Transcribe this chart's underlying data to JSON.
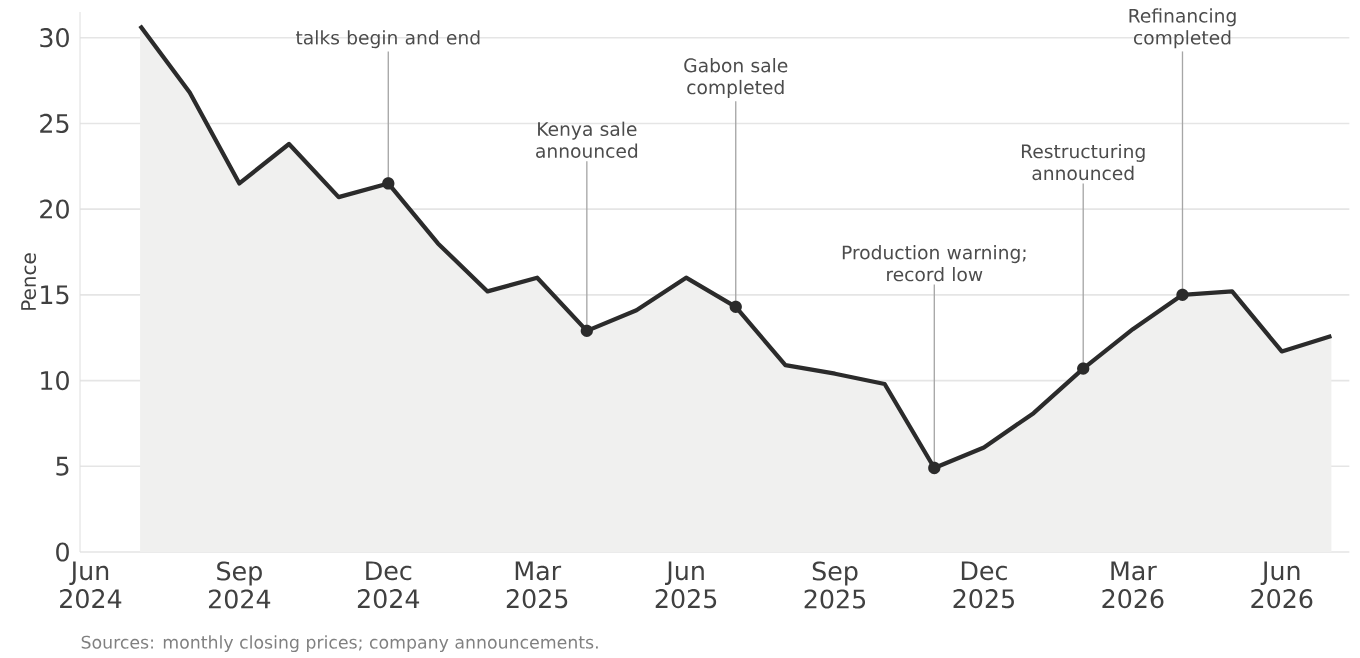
{
  "chart_data": {
    "type": "area",
    "ylabel": "Pence",
    "x": [
      "2024-07",
      "2024-08",
      "2024-09",
      "2024-10",
      "2024-11",
      "2024-12",
      "2025-01",
      "2025-02",
      "2025-03",
      "2025-04",
      "2025-05",
      "2025-06",
      "2025-07",
      "2025-08",
      "2025-09",
      "2025-10",
      "2025-11",
      "2025-12",
      "2026-01",
      "2026-02",
      "2026-03",
      "2026-04",
      "2026-05",
      "2026-06",
      "2026-07"
    ],
    "values": [
      30.7,
      26.8,
      21.5,
      23.8,
      20.7,
      21.5,
      18.0,
      15.2,
      16.0,
      12.9,
      14.1,
      16.0,
      14.3,
      10.9,
      10.4,
      9.8,
      4.9,
      6.1,
      8.1,
      10.7,
      13.0,
      15.0,
      15.2,
      11.7,
      12.6
    ],
    "color": "#2b2b2b",
    "xlim": [
      "2024-05-25",
      "2026-07-12"
    ],
    "ylim": [
      0,
      31.5
    ],
    "xticks": [
      {
        "value": "2024-06",
        "label": "Jun 2024"
      },
      {
        "value": "2024-09",
        "label": "Sep 2024"
      },
      {
        "value": "2024-12",
        "label": "Dec 2024"
      },
      {
        "value": "2025-03",
        "label": "Mar 2025"
      },
      {
        "value": "2025-06",
        "label": "Jun 2025"
      },
      {
        "value": "2025-09",
        "label": "Sep 2025"
      },
      {
        "value": "2025-12",
        "label": "Dec 2025"
      },
      {
        "value": "2026-03",
        "label": "Mar 2026"
      },
      {
        "value": "2026-06",
        "label": "Jun 2026"
      }
    ],
    "yticks": [
      0,
      5,
      10,
      15,
      20,
      25,
      30
    ],
    "grid": "y",
    "annotations": [
      {
        "text": "talks begin and end",
        "x": "2024-12",
        "y": 21.5
      },
      {
        "text": "Kenya sale announced",
        "x": "2025-04",
        "y": 12.9
      },
      {
        "text": "Gabon sale completed",
        "x": "2025-07",
        "y": 14.3
      },
      {
        "text": "Production warning; record low",
        "x": "2025-11",
        "y": 4.9
      },
      {
        "text": "Restructuring announced",
        "x": "2026-02",
        "y": 10.7
      },
      {
        "text": "Refinancing completed",
        "x": "2026-04",
        "y": 15.0
      },
      "Sources: monthly closing prices; company announcements."
    ]
  }
}
